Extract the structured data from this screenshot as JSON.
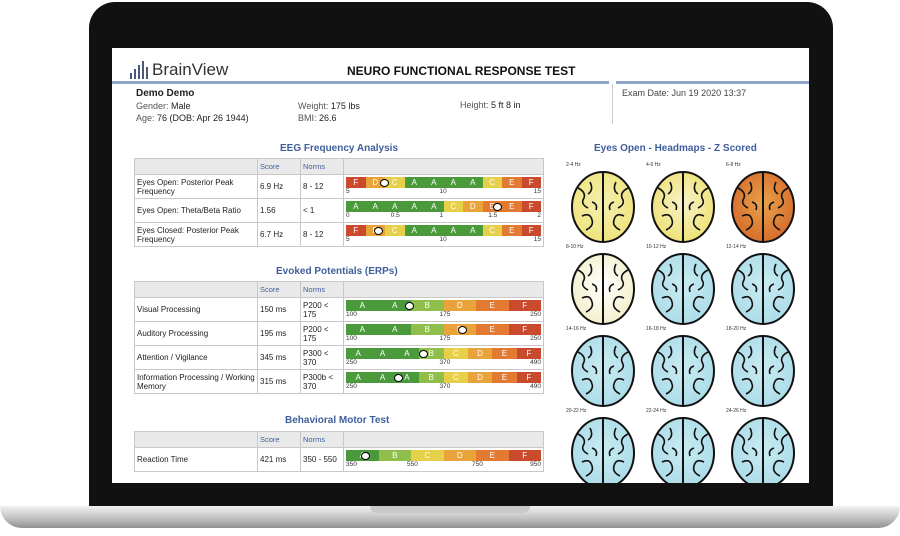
{
  "brand": {
    "name": "BrainView"
  },
  "report": {
    "title": "NEURO FUNCTIONAL RESPONSE TEST"
  },
  "patient": {
    "name": "Demo Demo",
    "gender_label": "Gender:",
    "gender": "Male",
    "age_label": "Age:",
    "age": "76  (DOB: Apr 26 1944)",
    "weight_label": "Weight:",
    "weight": "175 lbs",
    "bmi_label": "BMI:",
    "bmi": "26.6",
    "height_label": "Height:",
    "height": "5 ft 8 in",
    "exam_label": "Exam Date:",
    "exam_date": "Jun 19 2020 13:37"
  },
  "colors": {
    "F": "#c94a2c",
    "E": "#e27a31",
    "D": "#e9a33b",
    "C": "#e6d04a",
    "B": "#8fbf4a",
    "A": "#4a9a3c"
  },
  "eeg": {
    "title": "EEG Frequency Analysis",
    "score_header": "Score",
    "norms_header": "Norms",
    "rows": [
      {
        "label": "Eyes Open: Posterior Peak Frequency",
        "score": "6.9 Hz",
        "norms": "8 - 12",
        "grades": [
          "F",
          "D",
          "C",
          "A",
          "A",
          "A",
          "A",
          "C",
          "E",
          "F"
        ],
        "ticks": [
          "5",
          "10",
          "15"
        ],
        "marker": 0.2
      },
      {
        "label": "Eyes Open: Theta/Beta Ratio",
        "score": "1.56",
        "norms": "< 1",
        "grades": [
          "A",
          "A",
          "A",
          "A",
          "A",
          "C",
          "D",
          "E",
          "E",
          "F"
        ],
        "ticks": [
          "0",
          "0.5",
          "1",
          "1.5",
          "2"
        ],
        "marker": 0.78
      },
      {
        "label": "Eyes Closed: Posterior Peak Frequency",
        "score": "6.7 Hz",
        "norms": "8 - 12",
        "grades": [
          "F",
          "D",
          "C",
          "A",
          "A",
          "A",
          "A",
          "C",
          "E",
          "F"
        ],
        "ticks": [
          "5",
          "10",
          "15"
        ],
        "marker": 0.17
      }
    ]
  },
  "erp": {
    "title": "Evoked Potentials (ERPs)",
    "score_header": "Score",
    "norms_header": "Norms",
    "rows": [
      {
        "label": "Visual Processing",
        "score": "150 ms",
        "norms": "P200 < 175",
        "grades": [
          "A",
          "A",
          "B",
          "D",
          "E",
          "F"
        ],
        "ticks": [
          "100",
          "175",
          "250"
        ],
        "marker": 0.33
      },
      {
        "label": "Auditory Processing",
        "score": "195 ms",
        "norms": "P200 < 175",
        "grades": [
          "A",
          "A",
          "B",
          "D",
          "E",
          "F"
        ],
        "ticks": [
          "100",
          "175",
          "250"
        ],
        "marker": 0.6
      },
      {
        "label": "Attention / Vigilance",
        "score": "345 ms",
        "norms": "P300 < 370",
        "grades": [
          "A",
          "A",
          "A",
          "B",
          "C",
          "D",
          "E",
          "F"
        ],
        "ticks": [
          "250",
          "370",
          "490"
        ],
        "marker": 0.4
      },
      {
        "label": "Information Processing / Working Memory",
        "score": "315 ms",
        "norms": "P300b < 370",
        "grades": [
          "A",
          "A",
          "A",
          "B",
          "C",
          "D",
          "E",
          "F"
        ],
        "ticks": [
          "250",
          "370",
          "490"
        ],
        "marker": 0.27
      }
    ]
  },
  "motor": {
    "title": "Behavioral Motor Test",
    "score_header": "Score",
    "norms_header": "Norms",
    "rows": [
      {
        "label": "Reaction Time",
        "score": "421 ms",
        "norms": "350 - 550",
        "grades": [
          "A",
          "B",
          "C",
          "D",
          "E",
          "F"
        ],
        "ticks": [
          "350",
          "550",
          "750",
          "950"
        ],
        "marker": 0.1
      }
    ]
  },
  "headmaps": {
    "title": "Eyes Open - Headmaps - Z Scored",
    "maps": [
      {
        "label": "2-4 Hz",
        "tint": "#efe27a",
        "core": "#f4f0b0"
      },
      {
        "label": "4-6 Hz",
        "tint": "#eedf6f",
        "core": "#f7f3c9"
      },
      {
        "label": "6-8 Hz",
        "tint": "#d5682a",
        "core": "#e8a24a"
      },
      {
        "label": "8-10 Hz",
        "tint": "#f2eec7",
        "core": "#ffffff"
      },
      {
        "label": "10-12 Hz",
        "tint": "#a9dbe8",
        "core": "#c9ebf2"
      },
      {
        "label": "12-14 Hz",
        "tint": "#a9dbe8",
        "core": "#c9ebf2"
      },
      {
        "label": "14-16 Hz",
        "tint": "#a9dbe8",
        "core": "#c9ebf2"
      },
      {
        "label": "16-18 Hz",
        "tint": "#a9dbe8",
        "core": "#c9ebf2"
      },
      {
        "label": "18-20 Hz",
        "tint": "#a9dbe8",
        "core": "#c9ebf2"
      },
      {
        "label": "20-22 Hz",
        "tint": "#a9dbe8",
        "core": "#c9ebf2"
      },
      {
        "label": "22-24 Hz",
        "tint": "#a9dbe8",
        "core": "#c9ebf2"
      },
      {
        "label": "24-26 Hz",
        "tint": "#a9dbe8",
        "core": "#c9ebf2"
      }
    ]
  }
}
